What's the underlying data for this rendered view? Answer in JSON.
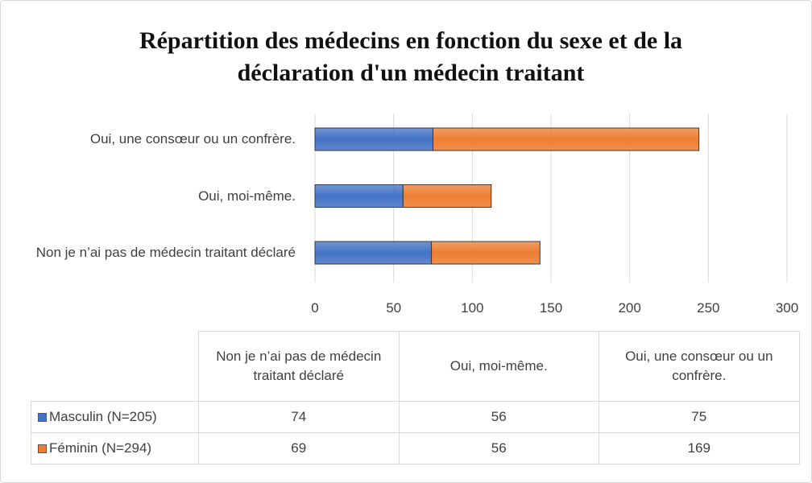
{
  "chart_data": {
    "type": "bar",
    "orientation": "horizontal",
    "stacked": true,
    "title": "Répartition des médecins en fonction du sexe et de la déclaration d'un médecin traitant",
    "categories": [
      "Non je n’ai pas de médecin traitant déclaré",
      "Oui, moi-même.",
      "Oui, une consœur ou un confrère."
    ],
    "series": [
      {
        "name": "Masculin (N=205)",
        "color": "#4472c4",
        "values": [
          74,
          56,
          75
        ]
      },
      {
        "name": "Féminin (N=294)",
        "color": "#ed7d31",
        "values": [
          69,
          56,
          169
        ]
      }
    ],
    "xlim": [
      0,
      300
    ],
    "xticks": [
      0,
      50,
      100,
      150,
      200,
      250,
      300
    ],
    "grid": true,
    "data_table": true
  }
}
